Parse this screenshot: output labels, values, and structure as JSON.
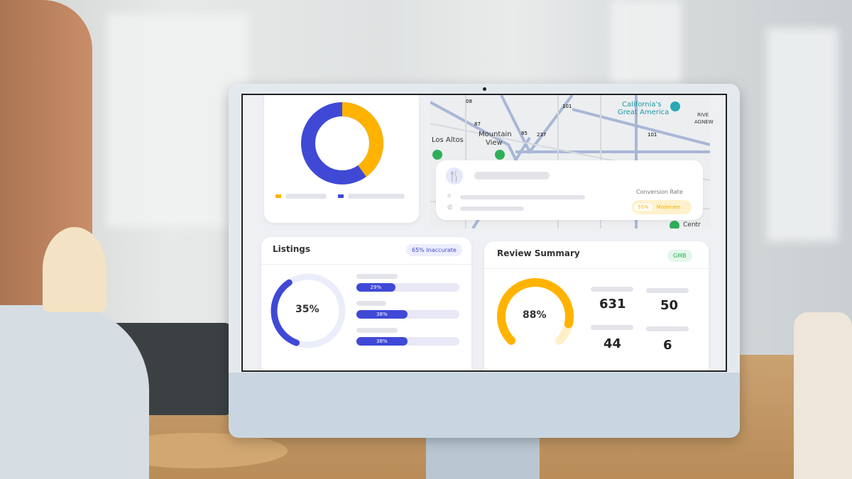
{
  "dashboard": {
    "donut": {
      "values": [
        60,
        40
      ],
      "colors": [
        "#3f49d6",
        "#ffb300"
      ]
    },
    "map": {
      "labels": [
        "Los Altos",
        "Mountain",
        "View",
        "California's",
        "Great America",
        "RIVE",
        "AGNEW",
        "Centr"
      ],
      "shields": [
        "08",
        "87",
        "85",
        "237",
        "101",
        "101"
      ],
      "info": {
        "icon": "fork-knife-icon",
        "conversion_label": "Conversion Rate",
        "conversion_value": "55%",
        "conversion_level": "Moderate"
      }
    },
    "listings": {
      "title": "Listings",
      "badge": "65% Inaccurate",
      "percent": "35%",
      "percent_value": 35,
      "bars": [
        {
          "label": "29%",
          "value": 29
        },
        {
          "label": "38%",
          "value": 38
        },
        {
          "label": "38%",
          "value": 38
        }
      ]
    },
    "reviews": {
      "title": "Review Summary",
      "badge": "GMB",
      "percent": "88%",
      "percent_value": 88,
      "stats": [
        "631",
        "50",
        "44",
        "6"
      ]
    }
  },
  "colors": {
    "primary": "#3f49d6",
    "accent": "#ffb300",
    "success": "#2fae5a"
  }
}
